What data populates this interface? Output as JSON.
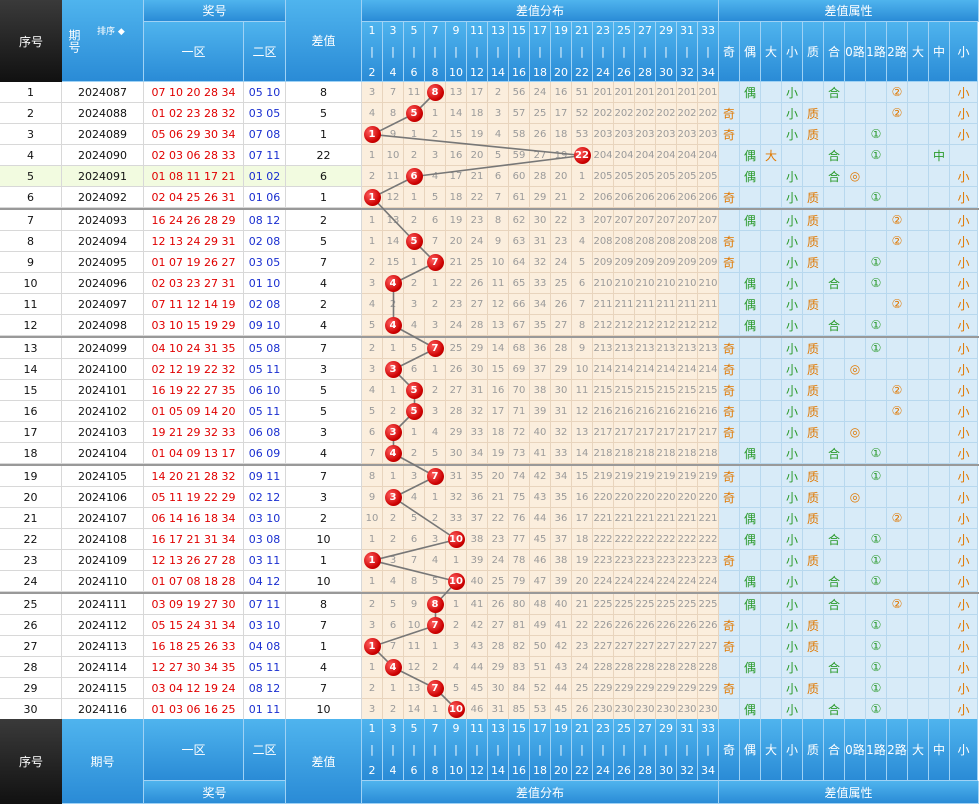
{
  "header": {
    "seq": "序号",
    "period": "期号",
    "sort_label": "排序",
    "prize": "奖号",
    "zone1": "一区",
    "zone2": "二区",
    "diff": "差值",
    "diff_dist": "差值分布",
    "diff_attr": "差值属性",
    "cols_top": [
      "1",
      "3",
      "5",
      "7",
      "9",
      "11",
      "13",
      "15",
      "17",
      "19",
      "21",
      "23",
      "25",
      "27",
      "29",
      "31",
      "33"
    ],
    "cols_bot": [
      "2",
      "4",
      "6",
      "8",
      "10",
      "12",
      "14",
      "16",
      "18",
      "20",
      "22",
      "24",
      "26",
      "28",
      "30",
      "32",
      "34"
    ],
    "attr_cols": [
      "奇",
      "偶",
      "大",
      "小",
      "质",
      "合",
      "0路",
      "1路",
      "2路",
      "大",
      "中",
      "小"
    ]
  },
  "footer": {
    "seq": "序号",
    "period": "期号"
  },
  "accent": "#2a8bd6",
  "highlight_row": "#f2fbe0",
  "rows": [
    {
      "seq": "1",
      "period": "2024087",
      "z1": "07 10 20 28 34",
      "z2": "05 10",
      "diff": "8",
      "dist": [
        "3",
        "7",
        "11",
        "8",
        "13",
        "17",
        "2",
        "56",
        "24",
        "16",
        "51",
        "201",
        "201",
        "201",
        "201",
        "201",
        "201"
      ],
      "attr": [
        "",
        "偶",
        "",
        "小",
        "",
        "合",
        "",
        "",
        "②",
        "",
        "",
        "小"
      ]
    },
    {
      "seq": "2",
      "period": "2024088",
      "z1": "01 02 23 28 32",
      "z2": "03 05",
      "diff": "5",
      "dist": [
        "4",
        "8",
        "5",
        "1",
        "14",
        "18",
        "3",
        "57",
        "25",
        "17",
        "52",
        "202",
        "202",
        "202",
        "202",
        "202",
        "202"
      ],
      "attr": [
        "奇",
        "",
        "",
        "小",
        "质",
        "",
        "",
        "",
        "②",
        "",
        "",
        "小"
      ]
    },
    {
      "seq": "3",
      "period": "2024089",
      "z1": "05 06 29 30 34",
      "z2": "07 08",
      "diff": "1",
      "dist": [
        "1",
        "9",
        "1",
        "2",
        "15",
        "19",
        "4",
        "58",
        "26",
        "18",
        "53",
        "203",
        "203",
        "203",
        "203",
        "203",
        "203"
      ],
      "attr": [
        "奇",
        "",
        "",
        "小",
        "质",
        "",
        "",
        "①",
        "",
        "",
        "",
        "小"
      ]
    },
    {
      "seq": "4",
      "period": "2024090",
      "z1": "02 03 06 28 33",
      "z2": "07 11",
      "diff": "22",
      "dist": [
        "1",
        "10",
        "2",
        "3",
        "16",
        "20",
        "5",
        "59",
        "27",
        "19",
        "22",
        "204",
        "204",
        "204",
        "204",
        "204",
        "204"
      ],
      "attr": [
        "",
        "偶",
        "大",
        "",
        "",
        "合",
        "",
        "①",
        "",
        "",
        "中",
        ""
      ]
    },
    {
      "seq": "5",
      "period": "2024091",
      "z1": "01 08 11 17 21",
      "z2": "01 02",
      "diff": "6",
      "dist": [
        "2",
        "11",
        "6",
        "4",
        "17",
        "21",
        "6",
        "60",
        "28",
        "20",
        "1",
        "205",
        "205",
        "205",
        "205",
        "205",
        "205"
      ],
      "attr": [
        "",
        "偶",
        "",
        "小",
        "",
        "合",
        "◎",
        "",
        "",
        "",
        "",
        "小"
      ]
    },
    {
      "seq": "6",
      "period": "2024092",
      "z1": "02 04 25 26 31",
      "z2": "01 06",
      "diff": "1",
      "dist": [
        "1",
        "12",
        "1",
        "5",
        "18",
        "22",
        "7",
        "61",
        "29",
        "21",
        "2",
        "206",
        "206",
        "206",
        "206",
        "206",
        "206"
      ],
      "attr": [
        "奇",
        "",
        "",
        "小",
        "质",
        "",
        "",
        "①",
        "",
        "",
        "",
        "小"
      ]
    },
    {
      "seq": "7",
      "period": "2024093",
      "z1": "16 24 26 28 29",
      "z2": "08 12",
      "diff": "2",
      "dist": [
        "1",
        "13",
        "2",
        "6",
        "19",
        "23",
        "8",
        "62",
        "30",
        "22",
        "3",
        "207",
        "207",
        "207",
        "207",
        "207",
        "207"
      ],
      "attr": [
        "",
        "偶",
        "",
        "小",
        "质",
        "",
        "",
        "",
        "②",
        "",
        "",
        "小"
      ]
    },
    {
      "seq": "8",
      "period": "2024094",
      "z1": "12 13 24 29 31",
      "z2": "02 08",
      "diff": "5",
      "dist": [
        "1",
        "14",
        "5",
        "7",
        "20",
        "24",
        "9",
        "63",
        "31",
        "23",
        "4",
        "208",
        "208",
        "208",
        "208",
        "208",
        "208"
      ],
      "attr": [
        "奇",
        "",
        "",
        "小",
        "质",
        "",
        "",
        "",
        "②",
        "",
        "",
        "小"
      ]
    },
    {
      "seq": "9",
      "period": "2024095",
      "z1": "01 07 19 26 27",
      "z2": "03 05",
      "diff": "7",
      "dist": [
        "2",
        "15",
        "1",
        "7",
        "21",
        "25",
        "10",
        "64",
        "32",
        "24",
        "5",
        "209",
        "209",
        "209",
        "209",
        "209",
        "209"
      ],
      "attr": [
        "奇",
        "",
        "",
        "小",
        "质",
        "",
        "",
        "①",
        "",
        "",
        "",
        "小"
      ]
    },
    {
      "seq": "10",
      "period": "2024096",
      "z1": "02 03 23 27 31",
      "z2": "01 10",
      "diff": "4",
      "dist": [
        "3",
        "4",
        "2",
        "1",
        "22",
        "26",
        "11",
        "65",
        "33",
        "25",
        "6",
        "210",
        "210",
        "210",
        "210",
        "210",
        "210"
      ],
      "attr": [
        "",
        "偶",
        "",
        "小",
        "",
        "合",
        "",
        "①",
        "",
        "",
        "",
        "小"
      ]
    },
    {
      "seq": "11",
      "period": "2024097",
      "z1": "07 11 12 14 19",
      "z2": "02 08",
      "diff": "2",
      "dist": [
        "4",
        "2",
        "3",
        "2",
        "23",
        "27",
        "12",
        "66",
        "34",
        "26",
        "7",
        "211",
        "211",
        "211",
        "211",
        "211",
        "211"
      ],
      "attr": [
        "",
        "偶",
        "",
        "小",
        "质",
        "",
        "",
        "",
        "②",
        "",
        "",
        "小"
      ]
    },
    {
      "seq": "12",
      "period": "2024098",
      "z1": "03 10 15 19 29",
      "z2": "09 10",
      "diff": "4",
      "dist": [
        "5",
        "4",
        "4",
        "3",
        "24",
        "28",
        "13",
        "67",
        "35",
        "27",
        "8",
        "212",
        "212",
        "212",
        "212",
        "212",
        "212"
      ],
      "attr": [
        "",
        "偶",
        "",
        "小",
        "",
        "合",
        "",
        "①",
        "",
        "",
        "",
        "小"
      ]
    },
    {
      "seq": "13",
      "period": "2024099",
      "z1": "04 10 24 31 35",
      "z2": "05 08",
      "diff": "7",
      "dist": [
        "2",
        "1",
        "5",
        "7",
        "25",
        "29",
        "14",
        "68",
        "36",
        "28",
        "9",
        "213",
        "213",
        "213",
        "213",
        "213",
        "213"
      ],
      "attr": [
        "奇",
        "",
        "",
        "小",
        "质",
        "",
        "",
        "①",
        "",
        "",
        "",
        "小"
      ]
    },
    {
      "seq": "14",
      "period": "2024100",
      "z1": "02 12 19 22 32",
      "z2": "05 11",
      "diff": "3",
      "dist": [
        "3",
        "3",
        "6",
        "1",
        "26",
        "30",
        "15",
        "69",
        "37",
        "29",
        "10",
        "214",
        "214",
        "214",
        "214",
        "214",
        "214"
      ],
      "attr": [
        "奇",
        "",
        "",
        "小",
        "质",
        "",
        "◎",
        "",
        "",
        "",
        "",
        "小"
      ]
    },
    {
      "seq": "15",
      "period": "2024101",
      "z1": "16 19 22 27 35",
      "z2": "06 10",
      "diff": "5",
      "dist": [
        "4",
        "1",
        "5",
        "2",
        "27",
        "31",
        "16",
        "70",
        "38",
        "30",
        "11",
        "215",
        "215",
        "215",
        "215",
        "215",
        "215"
      ],
      "attr": [
        "奇",
        "",
        "",
        "小",
        "质",
        "",
        "",
        "",
        "②",
        "",
        "",
        "小"
      ]
    },
    {
      "seq": "16",
      "period": "2024102",
      "z1": "01 05 09 14 20",
      "z2": "05 11",
      "diff": "5",
      "dist": [
        "5",
        "2",
        "5",
        "3",
        "28",
        "32",
        "17",
        "71",
        "39",
        "31",
        "12",
        "216",
        "216",
        "216",
        "216",
        "216",
        "216"
      ],
      "attr": [
        "奇",
        "",
        "",
        "小",
        "质",
        "",
        "",
        "",
        "②",
        "",
        "",
        "小"
      ]
    },
    {
      "seq": "17",
      "period": "2024103",
      "z1": "19 21 29 32 33",
      "z2": "06 08",
      "diff": "3",
      "dist": [
        "6",
        "3",
        "1",
        "4",
        "29",
        "33",
        "18",
        "72",
        "40",
        "32",
        "13",
        "217",
        "217",
        "217",
        "217",
        "217",
        "217"
      ],
      "attr": [
        "奇",
        "",
        "",
        "小",
        "质",
        "",
        "◎",
        "",
        "",
        "",
        "",
        "小"
      ]
    },
    {
      "seq": "18",
      "period": "2024104",
      "z1": "01 04 09 13 17",
      "z2": "06 09",
      "diff": "4",
      "dist": [
        "7",
        "4",
        "2",
        "5",
        "30",
        "34",
        "19",
        "73",
        "41",
        "33",
        "14",
        "218",
        "218",
        "218",
        "218",
        "218",
        "218"
      ],
      "attr": [
        "",
        "偶",
        "",
        "小",
        "",
        "合",
        "",
        "①",
        "",
        "",
        "",
        "小"
      ]
    },
    {
      "seq": "19",
      "period": "2024105",
      "z1": "14 20 21 28 32",
      "z2": "09 11",
      "diff": "7",
      "dist": [
        "8",
        "1",
        "3",
        "7",
        "31",
        "35",
        "20",
        "74",
        "42",
        "34",
        "15",
        "219",
        "219",
        "219",
        "219",
        "219",
        "219"
      ],
      "attr": [
        "奇",
        "",
        "",
        "小",
        "质",
        "",
        "",
        "①",
        "",
        "",
        "",
        "小"
      ]
    },
    {
      "seq": "20",
      "period": "2024106",
      "z1": "05 11 19 22 29",
      "z2": "02 12",
      "diff": "3",
      "dist": [
        "9",
        "3",
        "4",
        "1",
        "32",
        "36",
        "21",
        "75",
        "43",
        "35",
        "16",
        "220",
        "220",
        "220",
        "220",
        "220",
        "220"
      ],
      "attr": [
        "奇",
        "",
        "",
        "小",
        "质",
        "",
        "◎",
        "",
        "",
        "",
        "",
        "小"
      ]
    },
    {
      "seq": "21",
      "period": "2024107",
      "z1": "06 14 16 18 34",
      "z2": "03 10",
      "diff": "2",
      "dist": [
        "10",
        "2",
        "5",
        "2",
        "33",
        "37",
        "22",
        "76",
        "44",
        "36",
        "17",
        "221",
        "221",
        "221",
        "221",
        "221",
        "221"
      ],
      "attr": [
        "",
        "偶",
        "",
        "小",
        "质",
        "",
        "",
        "",
        "②",
        "",
        "",
        "小"
      ]
    },
    {
      "seq": "22",
      "period": "2024108",
      "z1": "16 17 21 31 34",
      "z2": "03 08",
      "diff": "10",
      "dist": [
        "1",
        "2",
        "6",
        "3",
        "10",
        "38",
        "23",
        "77",
        "45",
        "37",
        "18",
        "222",
        "222",
        "222",
        "222",
        "222",
        "222"
      ],
      "attr": [
        "",
        "偶",
        "",
        "小",
        "",
        "合",
        "",
        "①",
        "",
        "",
        "",
        "小"
      ]
    },
    {
      "seq": "23",
      "period": "2024109",
      "z1": "12 13 26 27 28",
      "z2": "03 11",
      "diff": "1",
      "dist": [
        "1",
        "3",
        "7",
        "4",
        "1",
        "39",
        "24",
        "78",
        "46",
        "38",
        "19",
        "223",
        "223",
        "223",
        "223",
        "223",
        "223"
      ],
      "attr": [
        "奇",
        "",
        "",
        "小",
        "质",
        "",
        "",
        "①",
        "",
        "",
        "",
        "小"
      ]
    },
    {
      "seq": "24",
      "period": "2024110",
      "z1": "01 07 08 18 28",
      "z2": "04 12",
      "diff": "10",
      "dist": [
        "1",
        "4",
        "8",
        "5",
        "10",
        "40",
        "25",
        "79",
        "47",
        "39",
        "20",
        "224",
        "224",
        "224",
        "224",
        "224",
        "224"
      ],
      "attr": [
        "",
        "偶",
        "",
        "小",
        "",
        "合",
        "",
        "①",
        "",
        "",
        "",
        "小"
      ]
    },
    {
      "seq": "25",
      "period": "2024111",
      "z1": "03 09 19 27 30",
      "z2": "07 11",
      "diff": "8",
      "dist": [
        "2",
        "5",
        "9",
        "8",
        "1",
        "41",
        "26",
        "80",
        "48",
        "40",
        "21",
        "225",
        "225",
        "225",
        "225",
        "225",
        "225"
      ],
      "attr": [
        "",
        "偶",
        "",
        "小",
        "",
        "合",
        "",
        "",
        "②",
        "",
        "",
        "小"
      ]
    },
    {
      "seq": "26",
      "period": "2024112",
      "z1": "05 15 24 31 34",
      "z2": "03 10",
      "diff": "7",
      "dist": [
        "3",
        "6",
        "10",
        "7",
        "2",
        "42",
        "27",
        "81",
        "49",
        "41",
        "22",
        "226",
        "226",
        "226",
        "226",
        "226",
        "226"
      ],
      "attr": [
        "奇",
        "",
        "",
        "小",
        "质",
        "",
        "",
        "①",
        "",
        "",
        "",
        "小"
      ]
    },
    {
      "seq": "27",
      "period": "2024113",
      "z1": "16 18 25 26 33",
      "z2": "04 08",
      "diff": "1",
      "dist": [
        "1",
        "7",
        "11",
        "1",
        "3",
        "43",
        "28",
        "82",
        "50",
        "42",
        "23",
        "227",
        "227",
        "227",
        "227",
        "227",
        "227"
      ],
      "attr": [
        "奇",
        "",
        "",
        "小",
        "质",
        "",
        "",
        "①",
        "",
        "",
        "",
        "小"
      ]
    },
    {
      "seq": "28",
      "period": "2024114",
      "z1": "12 27 30 34 35",
      "z2": "05 11",
      "diff": "4",
      "dist": [
        "1",
        "4",
        "12",
        "2",
        "4",
        "44",
        "29",
        "83",
        "51",
        "43",
        "24",
        "228",
        "228",
        "228",
        "228",
        "228",
        "228"
      ],
      "attr": [
        "",
        "偶",
        "",
        "小",
        "",
        "合",
        "",
        "①",
        "",
        "",
        "",
        "小"
      ]
    },
    {
      "seq": "29",
      "period": "2024115",
      "z1": "03 04 12 19 24",
      "z2": "08 12",
      "diff": "7",
      "dist": [
        "2",
        "1",
        "13",
        "7",
        "5",
        "45",
        "30",
        "84",
        "52",
        "44",
        "25",
        "229",
        "229",
        "229",
        "229",
        "229",
        "229"
      ],
      "attr": [
        "奇",
        "",
        "",
        "小",
        "质",
        "",
        "",
        "①",
        "",
        "",
        "",
        "小"
      ]
    },
    {
      "seq": "30",
      "period": "2024116",
      "z1": "01 03 06 16 25",
      "z2": "01 11",
      "diff": "10",
      "dist": [
        "3",
        "2",
        "14",
        "1",
        "10",
        "46",
        "31",
        "85",
        "53",
        "45",
        "26",
        "230",
        "230",
        "230",
        "230",
        "230",
        "230"
      ],
      "attr": [
        "",
        "偶",
        "",
        "小",
        "",
        "合",
        "",
        "①",
        "",
        "",
        "",
        "小"
      ]
    }
  ]
}
